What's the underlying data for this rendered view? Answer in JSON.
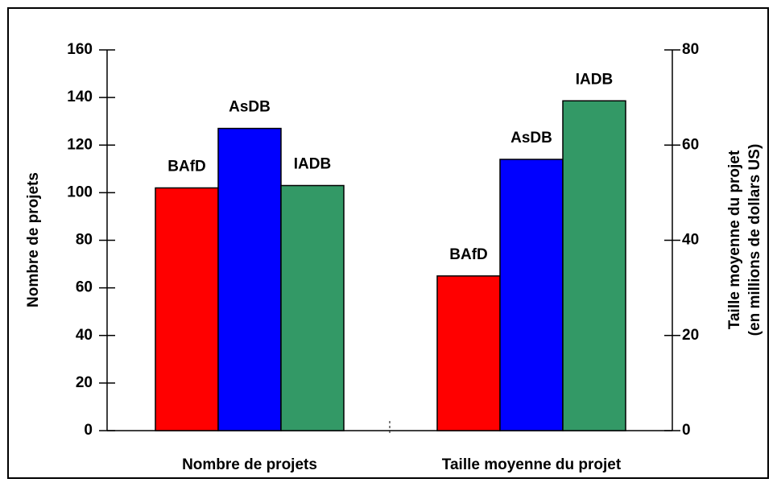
{
  "chart_data": [
    {
      "type": "bar",
      "categories": [
        "Nombre de projets"
      ],
      "series": [
        {
          "name": "BAfD",
          "color": "#ff0000",
          "values": [
            102
          ]
        },
        {
          "name": "AsDB",
          "color": "#0000ff",
          "values": [
            127
          ]
        },
        {
          "name": "IADB",
          "color": "#339966",
          "values": [
            103
          ]
        }
      ],
      "ylabel": "Nombre de projets",
      "ylim": [
        0,
        160
      ],
      "yticks": [
        0,
        20,
        40,
        60,
        80,
        100,
        120,
        140,
        160
      ]
    },
    {
      "type": "bar",
      "categories": [
        "Taille moyenne du projet"
      ],
      "series": [
        {
          "name": "BAfD",
          "color": "#ff0000",
          "values": [
            32.5
          ],
          "axis": "y2"
        },
        {
          "name": "AsDB",
          "color": "#0000ff",
          "values": [
            57
          ],
          "axis": "y2"
        },
        {
          "name": "IADB",
          "color": "#339966",
          "values": [
            69.3
          ],
          "axis": "y2"
        }
      ],
      "y2label": [
        "Taille moyenne du projet",
        "(en millions de dollars US)"
      ],
      "y2lim": [
        0,
        80
      ],
      "y2ticks": [
        0,
        20,
        40,
        60,
        80
      ]
    }
  ]
}
